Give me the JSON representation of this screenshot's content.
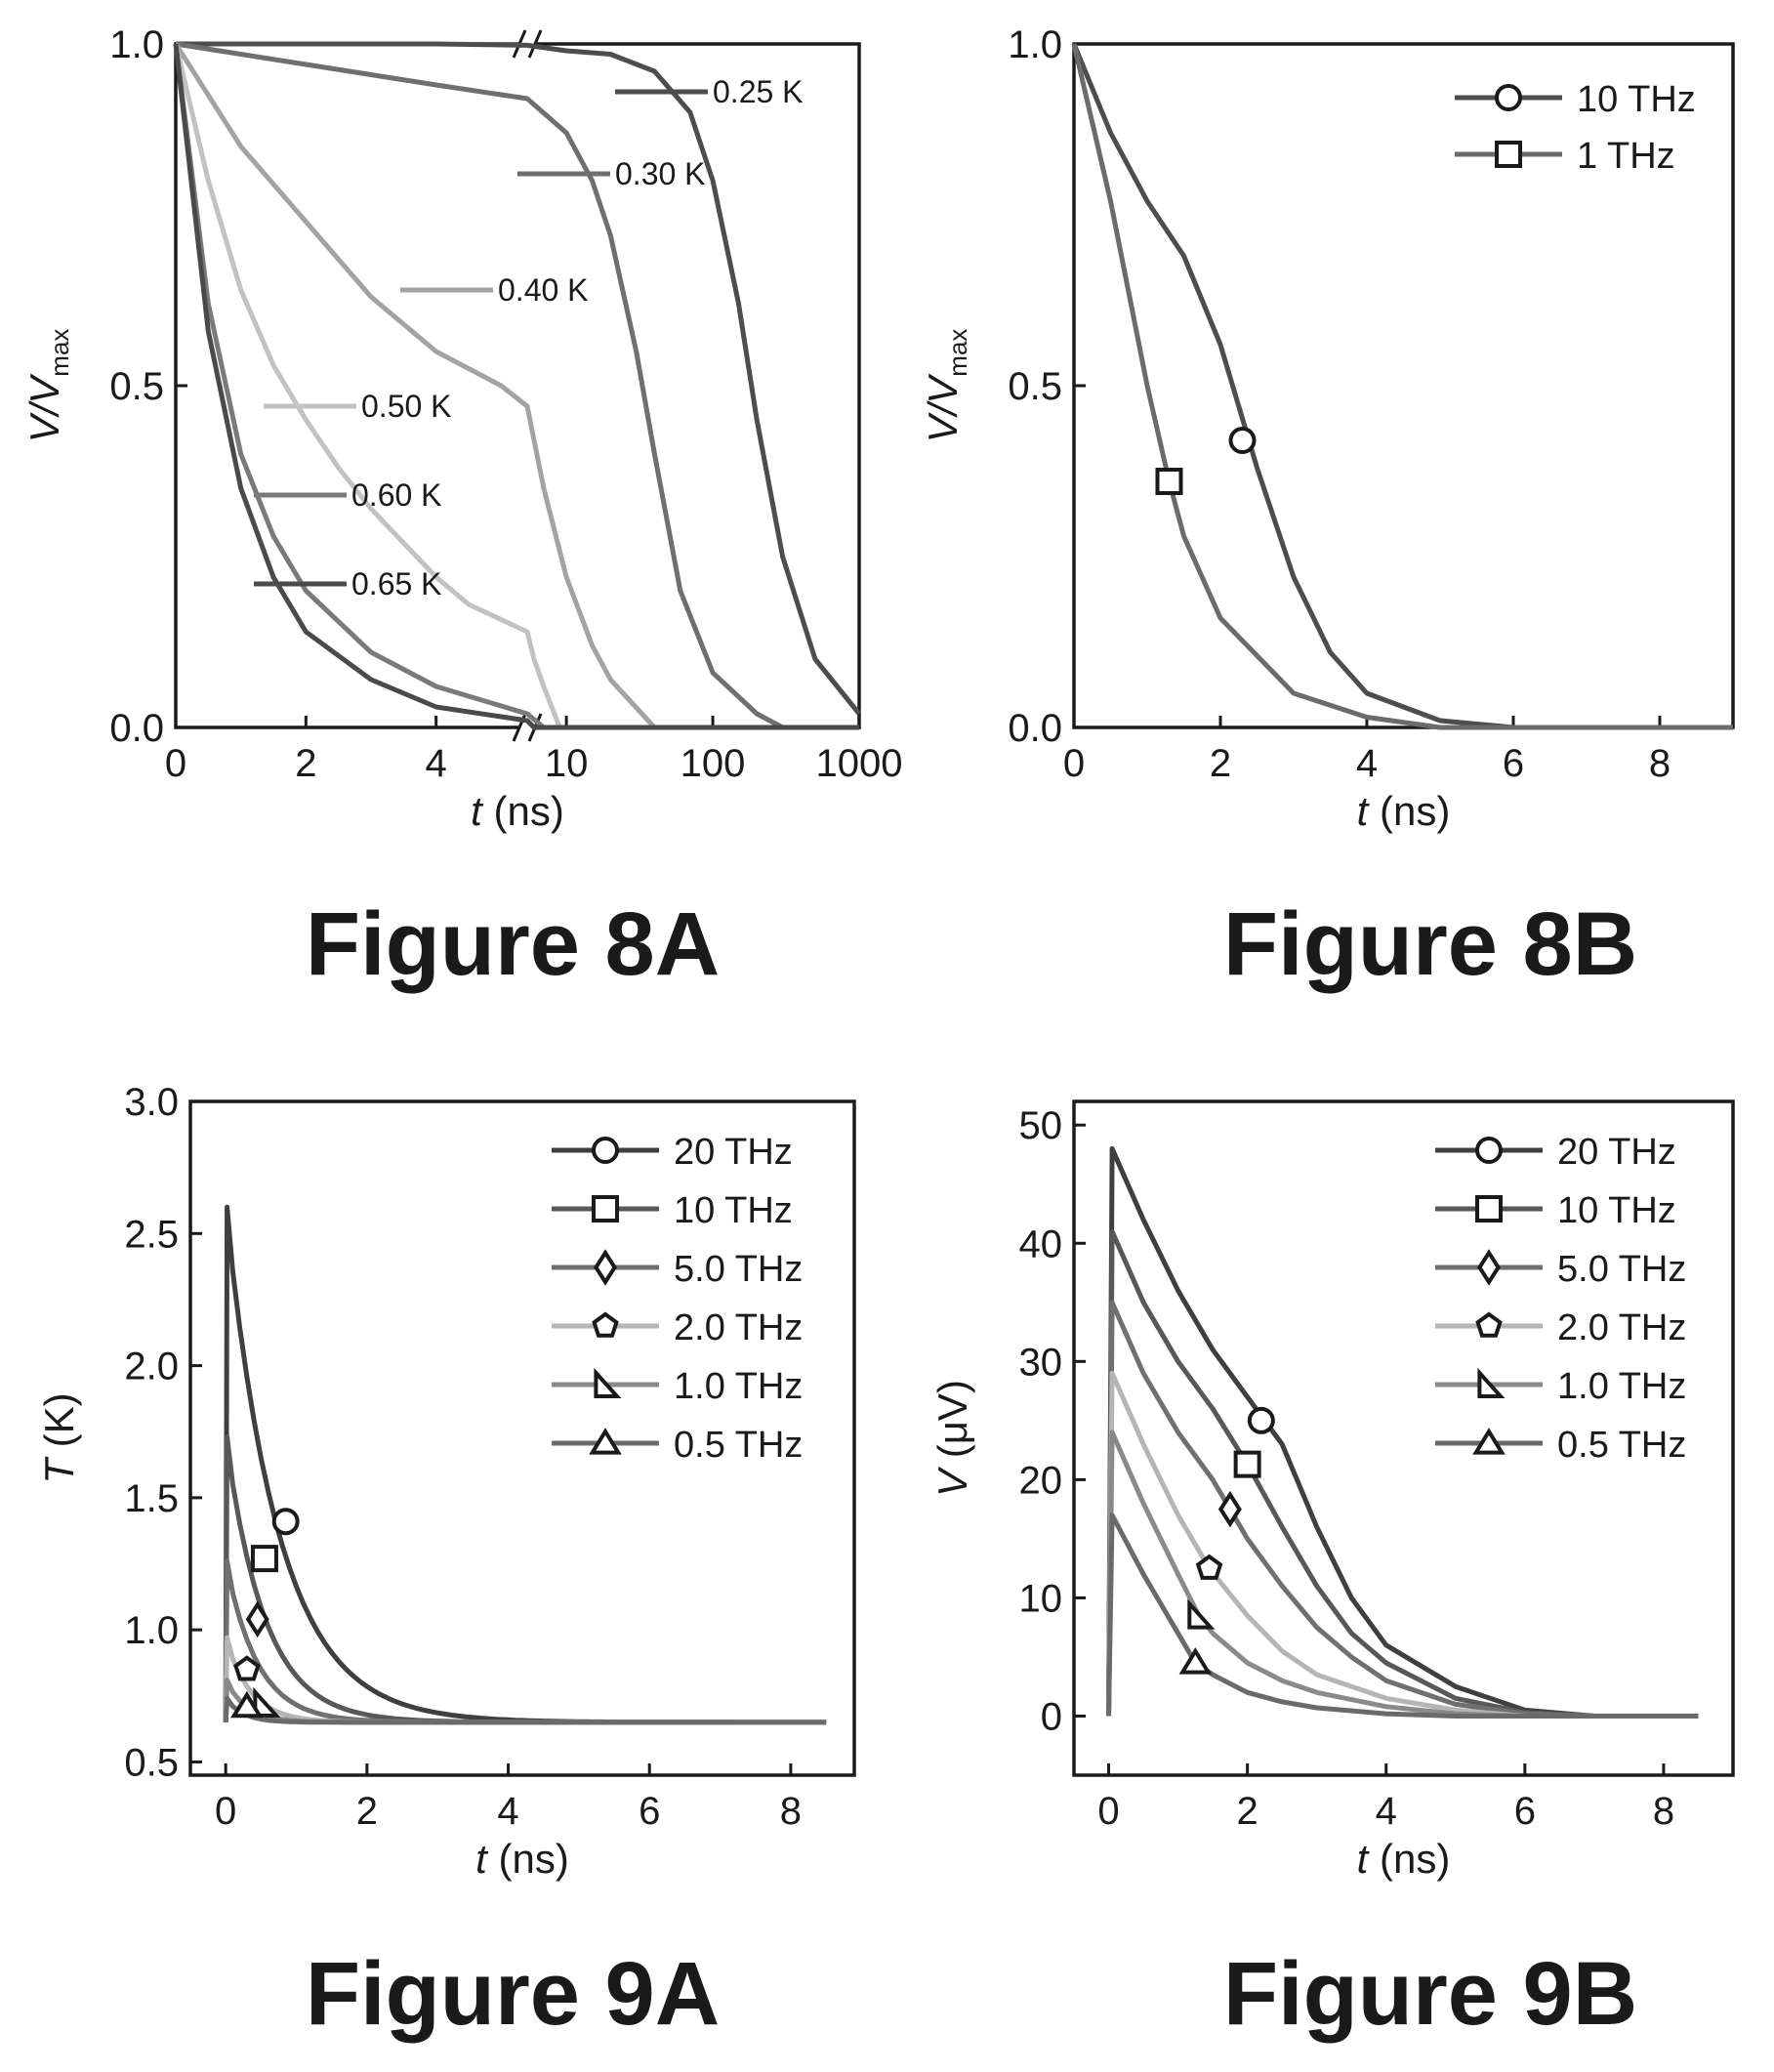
{
  "colors": {
    "axis": "#1a1a1a",
    "curve_palette": [
      "#3f3f3f",
      "#585858",
      "#707070",
      "#9a9a9a",
      "#8a8a8a",
      "#6a6a6a"
    ]
  },
  "captions": {
    "fig8a": "Figure 8A",
    "fig8b": "Figure 8B",
    "fig9a": "Figure 9A",
    "fig9b": "Figure 9B"
  },
  "chart_data": [
    {
      "id": "8A",
      "type": "line",
      "xlabel_italic": "t",
      "xlabel_unit": " (ns)",
      "ylabel_main": "V/V",
      "ylabel_sub": "max",
      "axis_break": true,
      "x_segments": [
        {
          "scale": "linear",
          "range": [
            0,
            5.4
          ],
          "ticks": [
            0,
            2,
            4
          ]
        },
        {
          "scale": "log",
          "range": [
            5.4,
            1000
          ],
          "ticks": [
            10,
            100,
            1000
          ]
        }
      ],
      "xticks_labels": [
        "0",
        "2",
        "4",
        "10",
        "100",
        "1000"
      ],
      "ylim": [
        0,
        1
      ],
      "yticks": [
        0.0,
        0.5,
        1.0
      ],
      "ytick_labels": [
        "0.0",
        "0.5",
        "1.0"
      ],
      "series": [
        {
          "name": "0.25 K",
          "color": "#4d4d4d",
          "label_at": [
            0.8,
            0.93
          ],
          "points": [
            [
              0,
              1
            ],
            [
              2,
              1
            ],
            [
              4,
              1
            ],
            [
              5.4,
              0.998
            ],
            [
              10,
              0.99
            ],
            [
              20,
              0.985
            ],
            [
              40,
              0.96
            ],
            [
              70,
              0.9
            ],
            [
              100,
              0.8
            ],
            [
              150,
              0.62
            ],
            [
              200,
              0.45
            ],
            [
              300,
              0.25
            ],
            [
              500,
              0.1
            ],
            [
              1000,
              0.02
            ]
          ]
        },
        {
          "name": "0.30 K",
          "color": "#6f6f6f",
          "label_at": [
            0.3,
            0.81
          ],
          "points": [
            [
              0,
              1
            ],
            [
              2,
              0.97
            ],
            [
              4,
              0.94
            ],
            [
              5.4,
              0.92
            ],
            [
              10,
              0.87
            ],
            [
              15,
              0.8
            ],
            [
              20,
              0.72
            ],
            [
              30,
              0.55
            ],
            [
              40,
              0.4
            ],
            [
              60,
              0.2
            ],
            [
              100,
              0.08
            ],
            [
              200,
              0.02
            ],
            [
              300,
              0
            ],
            [
              1000,
              0
            ]
          ]
        },
        {
          "name": "0.40 K",
          "color": "#a3a3a3",
          "label_at": [
            3.3,
            0.64
          ],
          "points": [
            [
              0,
              1
            ],
            [
              1,
              0.85
            ],
            [
              2,
              0.74
            ],
            [
              3,
              0.63
            ],
            [
              4,
              0.55
            ],
            [
              5,
              0.5
            ],
            [
              5.4,
              0.47
            ],
            [
              7,
              0.35
            ],
            [
              10,
              0.22
            ],
            [
              15,
              0.12
            ],
            [
              20,
              0.07
            ],
            [
              40,
              0
            ],
            [
              1000,
              0
            ]
          ]
        },
        {
          "name": "0.50 K",
          "color": "#c2c2c2",
          "label_at": [
            1.9,
            0.47
          ],
          "points": [
            [
              0,
              1
            ],
            [
              0.5,
              0.8
            ],
            [
              1,
              0.64
            ],
            [
              1.5,
              0.53
            ],
            [
              2,
              0.45
            ],
            [
              2.5,
              0.38
            ],
            [
              3,
              0.32
            ],
            [
              3.5,
              0.27
            ],
            [
              4,
              0.22
            ],
            [
              4.5,
              0.18
            ],
            [
              5.4,
              0.14
            ],
            [
              6,
              0.1
            ],
            [
              7,
              0.06
            ],
            [
              9,
              0
            ],
            [
              1000,
              0
            ]
          ]
        },
        {
          "name": "0.60 K",
          "color": "#7a7a7a",
          "label_at": [
            1.8,
            0.34
          ],
          "points": [
            [
              0,
              1
            ],
            [
              0.5,
              0.62
            ],
            [
              1,
              0.4
            ],
            [
              1.5,
              0.28
            ],
            [
              2,
              0.2
            ],
            [
              3,
              0.11
            ],
            [
              4,
              0.06
            ],
            [
              5.4,
              0.02
            ],
            [
              7,
              0
            ],
            [
              1000,
              0
            ]
          ]
        },
        {
          "name": "0.65 K",
          "color": "#4a4a4a",
          "label_at": [
            1.8,
            0.21
          ],
          "points": [
            [
              0,
              1
            ],
            [
              0.5,
              0.58
            ],
            [
              1,
              0.35
            ],
            [
              1.5,
              0.22
            ],
            [
              2,
              0.14
            ],
            [
              3,
              0.07
            ],
            [
              4,
              0.03
            ],
            [
              5.4,
              0.01
            ],
            [
              6,
              0
            ],
            [
              1000,
              0
            ]
          ]
        }
      ]
    },
    {
      "id": "8B",
      "type": "line",
      "xlabel_italic": "t",
      "xlabel_unit": " (ns)",
      "ylabel_main": "V/V",
      "ylabel_sub": "max",
      "xlim": [
        0,
        9
      ],
      "xticks": [
        0,
        2,
        4,
        6,
        8
      ],
      "ylim": [
        0,
        1
      ],
      "yticks": [
        0.0,
        0.5,
        1.0
      ],
      "ytick_labels": [
        "0.0",
        "0.5",
        "1.0"
      ],
      "legend": "top-right",
      "series": [
        {
          "name": "10 THz",
          "marker": "circle",
          "color": "#4d4d4d",
          "marker_at": [
            2.3,
            0.42
          ],
          "points": [
            [
              0,
              1
            ],
            [
              0.5,
              0.87
            ],
            [
              1,
              0.77
            ],
            [
              1.5,
              0.69
            ],
            [
              2,
              0.56
            ],
            [
              2.5,
              0.38
            ],
            [
              3,
              0.22
            ],
            [
              3.5,
              0.11
            ],
            [
              4,
              0.05
            ],
            [
              5,
              0.01
            ],
            [
              6,
              0
            ],
            [
              9,
              0
            ]
          ]
        },
        {
          "name": "1   THz",
          "marker": "square",
          "color": "#6b6b6b",
          "marker_at": [
            1.3,
            0.36
          ],
          "points": [
            [
              0,
              1
            ],
            [
              0.5,
              0.77
            ],
            [
              1,
              0.5
            ],
            [
              1.3,
              0.36
            ],
            [
              1.5,
              0.28
            ],
            [
              2,
              0.16
            ],
            [
              3,
              0.05
            ],
            [
              4,
              0.015
            ],
            [
              5,
              0
            ],
            [
              9,
              0
            ]
          ]
        }
      ]
    },
    {
      "id": "9A",
      "type": "line",
      "xlabel_italic": "t",
      "xlabel_unit": " (ns)",
      "ylabel_main": "T",
      "ylabel_unit": " (K)",
      "xlim": [
        -0.5,
        8.9
      ],
      "xticks": [
        0,
        2,
        4,
        6,
        8
      ],
      "ylim": [
        0.45,
        3.0
      ],
      "yticks": [
        0.5,
        1.0,
        1.5,
        2.0,
        2.5,
        3.0
      ],
      "ytick_labels": [
        "0.5",
        "1.0",
        "1.5",
        "2.0",
        "2.5",
        "3.0"
      ],
      "legend": "top-right",
      "series": [
        {
          "name": "20  THz",
          "marker": "circle",
          "color": "#3f3f3f",
          "peak": 2.6,
          "tau": 0.75,
          "marker_at": [
            0.85,
            1.41
          ]
        },
        {
          "name": "10  THz",
          "marker": "square",
          "color": "#585858",
          "peak": 1.73,
          "tau": 0.55,
          "marker_at": [
            0.55,
            1.27
          ]
        },
        {
          "name": "5.0 THz",
          "marker": "diamond",
          "color": "#707070",
          "peak": 1.26,
          "tau": 0.45,
          "marker_at": [
            0.45,
            1.04
          ]
        },
        {
          "name": "2.0 THz",
          "marker": "pentagon",
          "color": "#b5b5b5",
          "peak": 0.97,
          "tau": 0.35,
          "marker_at": [
            0.3,
            0.85
          ]
        },
        {
          "name": "1.0 THz",
          "marker": "right-triangle",
          "color": "#8a8a8a",
          "peak": 0.81,
          "tau": 0.3,
          "marker_at": [
            0.55,
            0.72
          ]
        },
        {
          "name": "0.5 THz",
          "marker": "triangle",
          "color": "#6a6a6a",
          "peak": 0.74,
          "tau": 0.25,
          "marker_at": [
            0.3,
            0.71
          ]
        }
      ],
      "baseline": 0.65,
      "x_end": 8.5
    },
    {
      "id": "9B",
      "type": "line",
      "xlabel_italic": "t",
      "xlabel_unit": " (ns)",
      "ylabel_main": "V",
      "ylabel_unit": " (μV)",
      "xlim": [
        -0.5,
        9
      ],
      "xticks": [
        0,
        2,
        4,
        6,
        8
      ],
      "ylim": [
        -5,
        52
      ],
      "yticks": [
        0,
        10,
        20,
        30,
        40,
        50
      ],
      "ytick_labels": [
        "0",
        "10",
        "20",
        "30",
        "40",
        "50"
      ],
      "legend": "top-right",
      "series": [
        {
          "name": "20  THz",
          "marker": "circle",
          "color": "#3f3f3f",
          "marker_at": [
            2.2,
            25
          ],
          "points": [
            [
              0,
              0
            ],
            [
              0.05,
              48
            ],
            [
              0.5,
              42
            ],
            [
              1,
              36
            ],
            [
              1.5,
              31
            ],
            [
              2,
              27
            ],
            [
              2.5,
              23
            ],
            [
              3,
              16
            ],
            [
              3.5,
              10
            ],
            [
              4,
              6
            ],
            [
              5,
              2.5
            ],
            [
              6,
              0.5
            ],
            [
              7,
              0
            ],
            [
              8.5,
              0
            ]
          ]
        },
        {
          "name": "10  THz",
          "marker": "square",
          "color": "#585858",
          "marker_at": [
            2.0,
            21.3
          ],
          "points": [
            [
              0,
              0
            ],
            [
              0.05,
              41
            ],
            [
              0.5,
              35
            ],
            [
              1,
              30
            ],
            [
              1.5,
              26
            ],
            [
              2,
              21.3
            ],
            [
              2.5,
              16
            ],
            [
              3,
              11
            ],
            [
              3.5,
              7
            ],
            [
              4,
              4.5
            ],
            [
              5,
              1.5
            ],
            [
              6,
              0.3
            ],
            [
              7,
              0
            ],
            [
              8.5,
              0
            ]
          ]
        },
        {
          "name": "5.0 THz",
          "marker": "diamond",
          "color": "#707070",
          "marker_at": [
            1.75,
            17.5
          ],
          "points": [
            [
              0,
              0
            ],
            [
              0.05,
              35
            ],
            [
              0.5,
              29
            ],
            [
              1,
              24
            ],
            [
              1.5,
              20
            ],
            [
              1.75,
              17.5
            ],
            [
              2,
              15
            ],
            [
              2.5,
              11
            ],
            [
              3,
              7.5
            ],
            [
              3.5,
              5
            ],
            [
              4,
              3
            ],
            [
              5,
              1
            ],
            [
              6,
              0.2
            ],
            [
              7,
              0
            ],
            [
              8.5,
              0
            ]
          ]
        },
        {
          "name": "2.0 THz",
          "marker": "pentagon",
          "color": "#b5b5b5",
          "marker_at": [
            1.45,
            12.5
          ],
          "points": [
            [
              0,
              0
            ],
            [
              0.05,
              29
            ],
            [
              0.5,
              23
            ],
            [
              1,
              17
            ],
            [
              1.45,
              12.5
            ],
            [
              2,
              8.5
            ],
            [
              2.5,
              5.5
            ],
            [
              3,
              3.5
            ],
            [
              4,
              1.5
            ],
            [
              5,
              0.5
            ],
            [
              6,
              0
            ],
            [
              8.5,
              0
            ]
          ]
        },
        {
          "name": "1.0 THz",
          "marker": "right-triangle",
          "color": "#8a8a8a",
          "marker_at": [
            1.3,
            8.5
          ],
          "points": [
            [
              0,
              0
            ],
            [
              0.05,
              24
            ],
            [
              0.5,
              18
            ],
            [
              1,
              12
            ],
            [
              1.3,
              8.5
            ],
            [
              1.5,
              7
            ],
            [
              2,
              4.5
            ],
            [
              2.5,
              3
            ],
            [
              3,
              2
            ],
            [
              4,
              0.8
            ],
            [
              5,
              0.2
            ],
            [
              6,
              0
            ],
            [
              8.5,
              0
            ]
          ]
        },
        {
          "name": "0.5 THz",
          "marker": "triangle",
          "color": "#6a6a6a",
          "marker_at": [
            1.25,
            4.5
          ],
          "points": [
            [
              0,
              0
            ],
            [
              0.05,
              17
            ],
            [
              0.5,
              12
            ],
            [
              1,
              7
            ],
            [
              1.25,
              4.5
            ],
            [
              1.5,
              3.5
            ],
            [
              2,
              2
            ],
            [
              2.5,
              1.2
            ],
            [
              3,
              0.7
            ],
            [
              4,
              0.2
            ],
            [
              5,
              0
            ],
            [
              8.5,
              0
            ]
          ]
        }
      ]
    }
  ]
}
